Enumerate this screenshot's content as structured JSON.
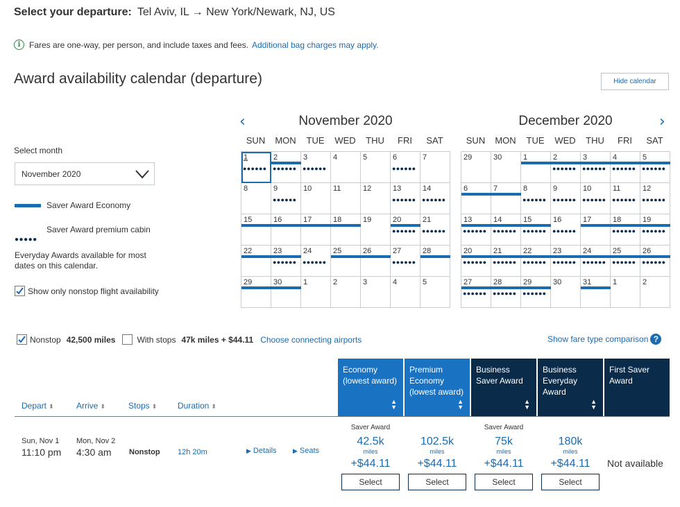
{
  "header": {
    "select_label": "Select your departure:",
    "route": "Tel Aviv, IL → New York/Newark, NJ, US"
  },
  "notice": {
    "icon": "info-icon",
    "text": "Fares are one-way, per person, and include taxes and fees.",
    "link": "Additional bag charges may apply."
  },
  "calendar": {
    "heading": "Award availability calendar (departure)",
    "hide_button": "Hide calendar",
    "select_month_label": "Select month",
    "selected_month": "November 2020",
    "legend": {
      "saver_economy": "Saver Award Economy",
      "saver_premium": "Saver Award premium cabin",
      "everyday_note": "Everyday Awards available for most dates on this calendar."
    },
    "nonstop_only_label": "Show only nonstop flight availability",
    "nonstop_only_checked": true,
    "prev_icon": "chevron-left-icon",
    "next_icon": "chevron-right-icon",
    "weekdays": [
      "SUN",
      "MON",
      "TUE",
      "WED",
      "THU",
      "FRI",
      "SAT"
    ],
    "months": [
      {
        "title": "November 2020",
        "weeks": [
          [
            {
              "d": "1",
              "s": false,
              "p": true,
              "sel": true
            },
            {
              "d": "2",
              "s": true,
              "p": true
            },
            {
              "d": "3",
              "s": false,
              "p": true
            },
            {
              "d": "4"
            },
            {
              "d": "5"
            },
            {
              "d": "6",
              "p": true
            },
            {
              "d": "7"
            }
          ],
          [
            {
              "d": "8"
            },
            {
              "d": "9",
              "p": true
            },
            {
              "d": "10"
            },
            {
              "d": "11"
            },
            {
              "d": "12"
            },
            {
              "d": "13",
              "p": true
            },
            {
              "d": "14",
              "p": true
            }
          ],
          [
            {
              "d": "15",
              "s": true
            },
            {
              "d": "16",
              "s": true
            },
            {
              "d": "17",
              "s": true
            },
            {
              "d": "18",
              "s": true
            },
            {
              "d": "19"
            },
            {
              "d": "20",
              "s": true,
              "p": true
            },
            {
              "d": "21",
              "p": true
            }
          ],
          [
            {
              "d": "22",
              "s": true
            },
            {
              "d": "23",
              "s": true,
              "p": true
            },
            {
              "d": "24",
              "p": true
            },
            {
              "d": "25",
              "s": true
            },
            {
              "d": "26",
              "s": true
            },
            {
              "d": "27",
              "p": true
            },
            {
              "d": "28",
              "s": true
            }
          ],
          [
            {
              "d": "29",
              "s": true
            },
            {
              "d": "30",
              "s": true
            },
            {
              "d": "1"
            },
            {
              "d": "2"
            },
            {
              "d": "3"
            },
            {
              "d": "4"
            },
            {
              "d": "5"
            }
          ]
        ]
      },
      {
        "title": "December 2020",
        "weeks": [
          [
            {
              "d": "29"
            },
            {
              "d": "30"
            },
            {
              "d": "1",
              "s": true
            },
            {
              "d": "2",
              "s": true,
              "p": true
            },
            {
              "d": "3",
              "s": true,
              "p": true
            },
            {
              "d": "4",
              "s": true,
              "p": true
            },
            {
              "d": "5",
              "s": true,
              "p": true
            }
          ],
          [
            {
              "d": "6",
              "s": true
            },
            {
              "d": "7",
              "s": true
            },
            {
              "d": "8",
              "p": true
            },
            {
              "d": "9",
              "p": true
            },
            {
              "d": "10",
              "p": true
            },
            {
              "d": "11",
              "p": true
            },
            {
              "d": "12",
              "p": true
            }
          ],
          [
            {
              "d": "13",
              "s": true,
              "p": true
            },
            {
              "d": "14",
              "s": true,
              "p": true
            },
            {
              "d": "15",
              "s": true,
              "p": true
            },
            {
              "d": "16",
              "p": true
            },
            {
              "d": "17",
              "s": true
            },
            {
              "d": "18",
              "s": true,
              "p": true
            },
            {
              "d": "19",
              "s": true,
              "p": true
            }
          ],
          [
            {
              "d": "20",
              "s": true,
              "p": true
            },
            {
              "d": "21",
              "s": true,
              "p": true
            },
            {
              "d": "22",
              "s": true,
              "p": true
            },
            {
              "d": "23",
              "s": true,
              "p": true
            },
            {
              "d": "24",
              "s": true,
              "p": true
            },
            {
              "d": "25",
              "s": true,
              "p": true
            },
            {
              "d": "26",
              "s": true,
              "p": true
            }
          ],
          [
            {
              "d": "27",
              "s": true,
              "p": true
            },
            {
              "d": "28",
              "s": true,
              "p": true
            },
            {
              "d": "29",
              "s": true,
              "p": true
            },
            {
              "d": "30"
            },
            {
              "d": "31",
              "s": true
            },
            {
              "d": "1"
            },
            {
              "d": "2"
            }
          ]
        ]
      }
    ]
  },
  "filters": {
    "nonstop_label": "Nonstop",
    "nonstop_checked": true,
    "nonstop_price": "42,500 miles",
    "stops_label": "With stops",
    "stops_checked": false,
    "stops_price": "47k miles + $44.11",
    "connecting_link": "Choose connecting airports",
    "fare_compare_link": "Show fare type comparison",
    "help_icon": "question-icon"
  },
  "columns": {
    "depart": "Depart",
    "arrive": "Arrive",
    "stops": "Stops",
    "duration": "Duration",
    "fares": [
      {
        "label": "Economy (lowest award)",
        "style": "light"
      },
      {
        "label": "Premium Economy (lowest award)",
        "style": "light"
      },
      {
        "label": "Business Saver Award",
        "style": "dark"
      },
      {
        "label": "Business Everyday Award",
        "style": "dark"
      },
      {
        "label": "First Saver Award",
        "style": "dark"
      }
    ]
  },
  "flight": {
    "depart_date": "Sun, Nov 1",
    "depart_time": "11:10 pm",
    "arrive_date": "Mon, Nov 2",
    "arrive_time": "4:30 am",
    "stops": "Nonstop",
    "duration": "12h 20m",
    "details_link": "Details",
    "seats_link": "Seats",
    "fares": [
      {
        "award": "Saver Award",
        "miles": "42.5k",
        "unit": "miles",
        "tax": "+$44.11",
        "button": "Select"
      },
      {
        "award": "",
        "miles": "102.5k",
        "unit": "miles",
        "tax": "+$44.11",
        "button": "Select"
      },
      {
        "award": "Saver Award",
        "miles": "75k",
        "unit": "miles",
        "tax": "+$44.11",
        "button": "Select"
      },
      {
        "award": "",
        "miles": "180k",
        "unit": "miles",
        "tax": "+$44.11",
        "button": "Select"
      }
    ],
    "first_status": "Not available"
  },
  "colors": {
    "accent": "#1a6bb0",
    "header_light": "#1a73c2",
    "header_dark": "#0b2b4a"
  }
}
